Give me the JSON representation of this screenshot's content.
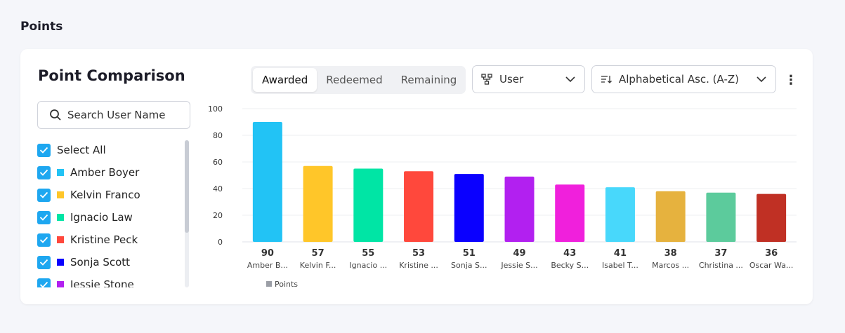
{
  "section_title": "Points",
  "card": {
    "title": "Point Comparison",
    "search_placeholder": "Search User Name"
  },
  "list": [
    {
      "label": "Select All",
      "color": null
    },
    {
      "label": "Amber Boyer",
      "color": "#22c3f5"
    },
    {
      "label": "Kelvin Franco",
      "color": "#ffc629"
    },
    {
      "label": "Ignacio Law",
      "color": "#00e5a5"
    },
    {
      "label": "Kristine Peck",
      "color": "#ff483c"
    },
    {
      "label": "Sonja Scott",
      "color": "#0a00ff"
    },
    {
      "label": "Jessie Stone",
      "color": "#b220f0"
    }
  ],
  "tabs": [
    {
      "label": "Awarded",
      "active": true
    },
    {
      "label": "Redeemed",
      "active": false
    },
    {
      "label": "Remaining",
      "active": false
    }
  ],
  "group_dropdown": {
    "value": "User",
    "icon": "hierarchy-icon"
  },
  "sort_dropdown": {
    "value": "Alphabetical Asc. (A-Z)",
    "icon": "sort-icon"
  },
  "chart_data": {
    "type": "bar",
    "categories": [
      "Amber B...",
      "Kelvin F...",
      "Ignacio ...",
      "Kristine ...",
      "Sonja S...",
      "Jessie S...",
      "Becky S...",
      "Isabel T...",
      "Marcos ...",
      "Christina ...",
      "Oscar Wa..."
    ],
    "values": [
      90,
      57,
      55,
      53,
      51,
      49,
      43,
      41,
      38,
      37,
      36
    ],
    "colors": [
      "#22c3f5",
      "#ffc629",
      "#00e5a5",
      "#ff483c",
      "#0a00ff",
      "#b220f0",
      "#f020dc",
      "#48d8fb",
      "#e6b23e",
      "#5ccb9c",
      "#c03024"
    ],
    "yticks": [
      0,
      20,
      40,
      60,
      80,
      100
    ],
    "ylim": [
      0,
      100
    ],
    "legend": {
      "label": "Points",
      "color": "#9b9ea6",
      "position": "bottom-left"
    },
    "grid": true
  }
}
